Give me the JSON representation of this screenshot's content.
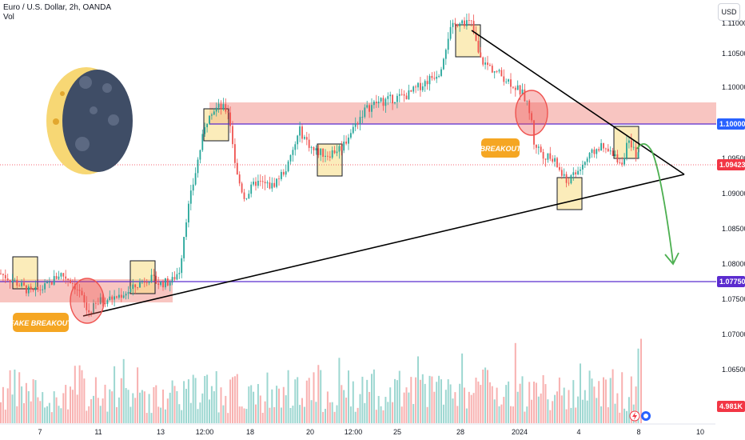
{
  "header": {
    "symbol_line": "Euro / U.S. Dollar, 2h, OANDA",
    "vol_label": "Vol"
  },
  "currency_button": "USD",
  "price_axis": {
    "ticks": [
      "1.11000",
      "1.10500",
      "1.10000",
      "1.09500",
      "1.09000",
      "1.08500",
      "1.08000",
      "1.07500",
      "1.07000",
      "1.06500"
    ]
  },
  "time_axis": {
    "ticks": [
      "7",
      "11",
      "13",
      "12:00",
      "18",
      "20",
      "12:00",
      "25",
      "28",
      "2024",
      "4",
      "8",
      "10"
    ]
  },
  "price_tags": {
    "resistance": "1.10000",
    "last": "1.09423",
    "support": "1.07750",
    "volume": "4.981K"
  },
  "annotations": {
    "breakout": "BREAKOUT",
    "fake_breakout": "FAKE BREAKOUT"
  },
  "colors": {
    "up": "#26a69a",
    "down": "#ef5350",
    "resistance_line": "#5b2ccf",
    "zone_fill": "#f6b2ac",
    "box_fill": "#f7dc82",
    "trendline": "#000000",
    "forecast": "#4caf50",
    "tag_blue": "#2962ff",
    "tag_red": "#f23645",
    "tag_purple": "#5b2ccf",
    "note_orange": "#f5a623",
    "moon": "#3f4d66",
    "moon_glow": "#f7d774"
  },
  "chart_data": {
    "type": "candlestick",
    "instrument": "Euro / U.S. Dollar, 2h, OANDA",
    "price_range": [
      1.0605,
      1.114
    ],
    "levels": {
      "resistance": 1.1,
      "last": 1.09423,
      "support": 1.0775
    },
    "zones": [
      {
        "name": "support",
        "from": 1.0745,
        "to": 1.0785
      },
      {
        "name": "resistance",
        "from": 1.1,
        "to": 1.103
      }
    ],
    "price_path": [
      [
        0,
        1.0795
      ],
      [
        18,
        1.0785
      ],
      [
        40,
        1.077
      ],
      [
        60,
        1.078
      ],
      [
        75,
        1.0795
      ],
      [
        90,
        1.0785
      ],
      [
        100,
        1.077
      ],
      [
        110,
        1.0745
      ],
      [
        125,
        1.076
      ],
      [
        145,
        1.0765
      ],
      [
        165,
        1.0775
      ],
      [
        185,
        1.079
      ],
      [
        200,
        1.0782
      ],
      [
        215,
        1.0785
      ],
      [
        225,
        1.08
      ],
      [
        232,
        1.086
      ],
      [
        240,
        1.09
      ],
      [
        252,
        1.096
      ],
      [
        262,
        1.1
      ],
      [
        275,
        1.1005
      ],
      [
        286,
        1.1
      ],
      [
        296,
        1.092
      ],
      [
        306,
        1.089
      ],
      [
        320,
        1.091
      ],
      [
        340,
        1.0905
      ],
      [
        360,
        1.093
      ],
      [
        375,
        1.0975
      ],
      [
        392,
        1.095
      ],
      [
        410,
        1.0945
      ],
      [
        428,
        1.0955
      ],
      [
        440,
        1.0975
      ],
      [
        455,
        1.1
      ],
      [
        470,
        1.101
      ],
      [
        490,
        1.1015
      ],
      [
        510,
        1.102
      ],
      [
        530,
        1.1035
      ],
      [
        550,
        1.105
      ],
      [
        562,
        1.11
      ],
      [
        575,
        1.1115
      ],
      [
        590,
        1.111
      ],
      [
        600,
        1.1065
      ],
      [
        620,
        1.105
      ],
      [
        640,
        1.1035
      ],
      [
        655,
        1.102
      ],
      [
        664,
        1.0995
      ],
      [
        668,
        1.096
      ],
      [
        680,
        1.0945
      ],
      [
        695,
        1.0935
      ],
      [
        708,
        1.091
      ],
      [
        720,
        1.092
      ],
      [
        735,
        1.094
      ],
      [
        750,
        1.0955
      ],
      [
        765,
        1.0945
      ],
      [
        778,
        1.0935
      ],
      [
        785,
        1.096
      ],
      [
        792,
        1.095
      ],
      [
        800,
        1.0942
      ]
    ],
    "volume_max": 5.9,
    "volume_last": 4.981
  }
}
